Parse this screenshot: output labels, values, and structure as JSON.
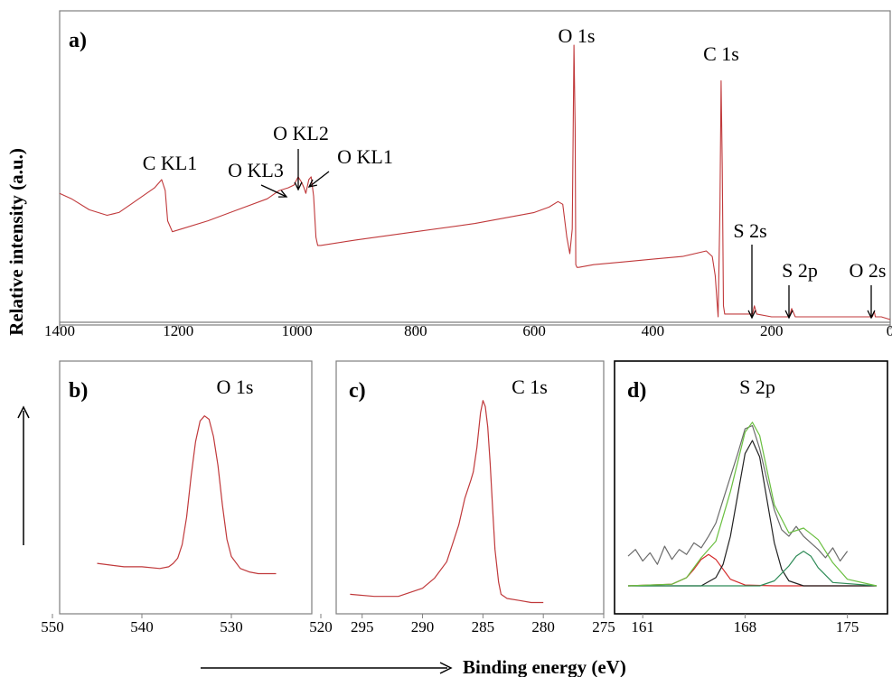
{
  "figure": {
    "ylabel": "Relative intensity (a.u.)",
    "xlabel": "Binding energy (eV)"
  },
  "chart_data": [
    {
      "panel": "a)",
      "type": "line",
      "xlim": [
        1400,
        0
      ],
      "x_ticks": [
        "1400",
        "1200",
        "1000",
        "800",
        "600",
        "400",
        "200",
        "0"
      ],
      "x_tick_values": [
        1400,
        1200,
        1000,
        800,
        600,
        400,
        200,
        0
      ],
      "ylim": [
        0,
        100
      ],
      "series": [
        {
          "color": "#c0393b",
          "x": [
            1400,
            1380,
            1350,
            1320,
            1300,
            1280,
            1260,
            1240,
            1228,
            1222,
            1218,
            1210,
            1195,
            1150,
            1100,
            1050,
            1030,
            1015,
            1005,
            998,
            992,
            988,
            985,
            980,
            976,
            972,
            968,
            965,
            960,
            900,
            800,
            700,
            600,
            575,
            560,
            552,
            545,
            540,
            536,
            533,
            531,
            530,
            528,
            525,
            500,
            450,
            400,
            350,
            310,
            300,
            295,
            290,
            287,
            285,
            283,
            281,
            279,
            275,
            250,
            232,
            229,
            225,
            200,
            170,
            166,
            160,
            100,
            50,
            30,
            27,
            25,
            15,
            0
          ],
          "values": [
            46,
            44,
            40,
            38,
            39,
            42,
            45,
            48,
            51,
            47,
            36,
            32,
            33,
            36,
            40,
            44,
            47,
            48,
            49,
            52,
            50,
            48,
            46,
            51,
            52,
            45,
            30,
            27,
            27,
            29,
            32,
            35,
            39,
            41,
            43,
            42,
            30,
            24,
            33,
            100,
            70,
            20,
            19,
            19,
            20,
            21,
            22,
            23,
            25,
            23,
            16,
            1,
            40,
            87,
            55,
            5,
            2,
            2,
            2,
            2,
            5,
            2,
            1,
            1,
            4,
            1,
            1,
            1,
            1,
            3,
            1,
            1,
            0
          ]
        }
      ],
      "annotations": [
        {
          "text": "O 1s",
          "x": 533,
          "y": 100
        },
        {
          "text": "C 1s",
          "x": 285,
          "y": 87
        },
        {
          "text": "C KL1",
          "x": 1228,
          "y": 51
        },
        {
          "text": "O KL2",
          "x": 1000,
          "y": 52
        },
        {
          "text": "O KL3",
          "x": 1015,
          "y": 48
        },
        {
          "text": "O KL1",
          "x": 978,
          "y": 52
        },
        {
          "text": "S 2s",
          "x": 229,
          "y": 5
        },
        {
          "text": "S 2p",
          "x": 166,
          "y": 4
        },
        {
          "text": "O 2s",
          "x": 26,
          "y": 3
        }
      ]
    },
    {
      "panel": "b)",
      "type": "line",
      "title": "O 1s",
      "xlim": [
        550,
        520
      ],
      "x_ticks": [
        "550",
        "540",
        "530",
        "520"
      ],
      "x_tick_values": [
        550,
        540,
        530,
        520
      ],
      "ylim": [
        0,
        100
      ],
      "series": [
        {
          "color": "#c0393b",
          "x": [
            545,
            542,
            540,
            538,
            537,
            536.5,
            536,
            535.5,
            535,
            534.5,
            534,
            533.5,
            533,
            532.5,
            532,
            531.5,
            531,
            530.5,
            530,
            529,
            528,
            527,
            526,
            525
          ],
          "values": [
            11,
            9,
            9,
            8,
            9,
            11,
            14,
            22,
            38,
            62,
            82,
            94,
            97,
            95,
            85,
            68,
            45,
            25,
            15,
            8,
            6,
            5,
            5,
            5
          ]
        }
      ]
    },
    {
      "panel": "c)",
      "type": "line",
      "title": "C 1s",
      "xlim": [
        297,
        275
      ],
      "x_ticks": [
        "295",
        "290",
        "285",
        "280",
        "275"
      ],
      "x_tick_values": [
        295,
        290,
        285,
        280,
        275
      ],
      "ylim": [
        0,
        100
      ],
      "series": [
        {
          "color": "#c0393b",
          "x": [
            296,
            294,
            292,
            290,
            289,
            288,
            287.5,
            287,
            286.5,
            286,
            285.8,
            285.5,
            285.2,
            285,
            284.8,
            284.6,
            284.4,
            284.2,
            284,
            283.7,
            283.5,
            283,
            282,
            281,
            280
          ],
          "values": [
            6,
            5,
            5,
            9,
            14,
            22,
            31,
            40,
            53,
            62,
            66,
            78,
            95,
            101,
            98,
            88,
            70,
            48,
            28,
            12,
            6,
            4,
            3,
            2,
            2
          ]
        }
      ]
    },
    {
      "panel": "d)",
      "type": "line",
      "title": "S 2p",
      "xlim": [
        160,
        177
      ],
      "x_ticks": [
        "161",
        "168",
        "175"
      ],
      "x_tick_values": [
        161,
        168,
        175
      ],
      "ylim": [
        0,
        100
      ],
      "series": [
        {
          "color": "#6b6b6b",
          "x": [
            160,
            160.5,
            161,
            161.5,
            162,
            162.5,
            163,
            163.5,
            164,
            164.5,
            165,
            165.5,
            166,
            166.5,
            167,
            167.5,
            168,
            168.5,
            169,
            169.5,
            170,
            170.5,
            171,
            171.5,
            172,
            172.5,
            173,
            173.5,
            174,
            174.5,
            175
          ],
          "values": [
            18,
            22,
            15,
            20,
            13,
            24,
            16,
            22,
            19,
            26,
            23,
            30,
            38,
            52,
            66,
            80,
            95,
            97,
            83,
            64,
            46,
            34,
            30,
            36,
            30,
            26,
            22,
            17,
            23,
            15,
            21
          ]
        },
        {
          "color": "#d42a2a",
          "x": [
            160,
            163,
            164,
            164.5,
            165,
            165.5,
            166,
            166.5,
            167,
            168,
            170,
            177
          ],
          "values": [
            0,
            1,
            5,
            10,
            16,
            19,
            16,
            10,
            4,
            0.5,
            0,
            0
          ]
        },
        {
          "color": "#222222",
          "x": [
            160,
            165,
            166,
            166.5,
            167,
            167.5,
            168,
            168.5,
            169,
            169.5,
            170,
            170.5,
            171,
            172,
            177
          ],
          "values": [
            0,
            0,
            5,
            13,
            30,
            55,
            80,
            88,
            78,
            52,
            26,
            10,
            3,
            0,
            0
          ]
        },
        {
          "color": "#2e8b57",
          "x": [
            160,
            169,
            170,
            171,
            171.5,
            172,
            172.5,
            173,
            174,
            177
          ],
          "values": [
            0,
            0,
            3,
            12,
            18,
            21,
            18,
            11,
            2,
            0
          ]
        },
        {
          "color": "#6abf40",
          "x": [
            160,
            163,
            164,
            165,
            166,
            167,
            167.5,
            168,
            168.5,
            169,
            169.5,
            170,
            171,
            172,
            173,
            174,
            175,
            177
          ],
          "values": [
            0,
            1,
            5,
            17,
            27,
            57,
            75,
            93,
            99,
            91,
            70,
            49,
            32,
            35,
            28,
            14,
            4,
            0
          ]
        }
      ]
    }
  ]
}
